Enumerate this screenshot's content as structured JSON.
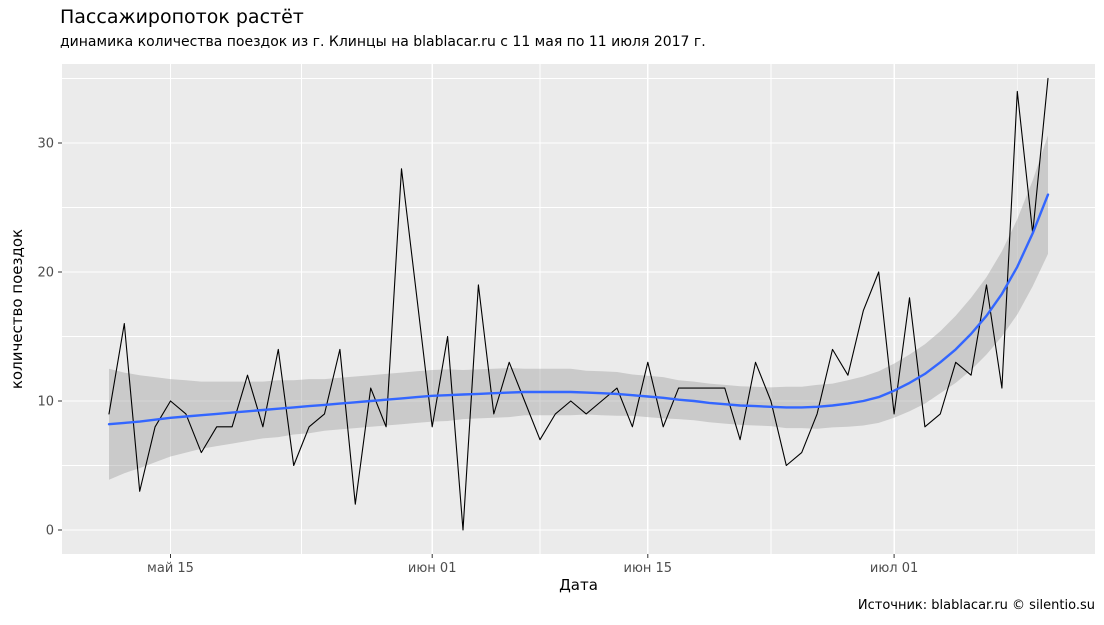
{
  "chart_data": {
    "type": "line",
    "title": "Пассажиропоток растёт",
    "subtitle": "динамика количества поездок из г. Клинцы на blablacar.ru с 11 мая по 11 июля 2017 г.",
    "caption": "Источник: blablacar.ru © silentio.su",
    "xlabel": "Дата",
    "ylabel": "количество поездок",
    "x_start_date": "2017-05-11",
    "x_end_date": "2017-07-11",
    "x_frequency": "daily",
    "x_tick_labels": [
      "май 15",
      "июн 01",
      "июн 15",
      "июл 01"
    ],
    "x_tick_day_indices": [
      4,
      21,
      35,
      51
    ],
    "x_minor_day_indices": [
      12.5,
      28,
      43,
      59
    ],
    "y_tick_labels": [
      "0",
      "10",
      "20",
      "30"
    ],
    "y_tick_values": [
      0,
      10,
      20,
      30
    ],
    "y_minor_values": [
      5,
      15,
      25,
      35
    ],
    "xlim_day_index": [
      -3.05,
      64.05
    ],
    "ylim": [
      -1.86,
      36.12
    ],
    "grid": true,
    "legend_position": "none",
    "panel_background": "#EBEBEB",
    "grid_color": "#FFFFFF",
    "tick_text_color": "#4D4D4D",
    "tick_mark_color": "#333333",
    "series": [
      {
        "name": "число поездок в день",
        "role": "data-line",
        "color": "#000000",
        "values": [
          9,
          16,
          3,
          8,
          10,
          9,
          6,
          8,
          8,
          12,
          8,
          14,
          5,
          8,
          9,
          14,
          2,
          11,
          8,
          28,
          18,
          8,
          15,
          0,
          19,
          9,
          13,
          10,
          7,
          9,
          10,
          9,
          10,
          11,
          8,
          13,
          8,
          11,
          11,
          11,
          11,
          7,
          13,
          10,
          5,
          6,
          9,
          14,
          12,
          17,
          20,
          9,
          18,
          8,
          9,
          13,
          12,
          19,
          11,
          34,
          23,
          35
        ]
      },
      {
        "name": "сглаженный тренд (loess)",
        "role": "smooth-line",
        "color": "#3366FF",
        "values": [
          8.2,
          8.3,
          8.4,
          8.55,
          8.7,
          8.8,
          8.9,
          9.0,
          9.1,
          9.2,
          9.3,
          9.4,
          9.5,
          9.6,
          9.7,
          9.8,
          9.9,
          10.0,
          10.1,
          10.2,
          10.3,
          10.4,
          10.45,
          10.5,
          10.55,
          10.6,
          10.65,
          10.7,
          10.7,
          10.7,
          10.7,
          10.65,
          10.6,
          10.55,
          10.45,
          10.35,
          10.25,
          10.1,
          10.0,
          9.85,
          9.75,
          9.65,
          9.6,
          9.55,
          9.5,
          9.5,
          9.55,
          9.65,
          9.8,
          10.0,
          10.3,
          10.8,
          11.4,
          12.1,
          13.0,
          14.0,
          15.2,
          16.6,
          18.3,
          20.4,
          23.0,
          26.0
        ]
      },
      {
        "name": "доверительная полоса (полуширина)",
        "role": "ribbon-halfwidth",
        "color": "#999999",
        "opacity": 0.4,
        "values": [
          4.3,
          3.9,
          3.6,
          3.3,
          3.0,
          2.8,
          2.6,
          2.5,
          2.4,
          2.3,
          2.2,
          2.2,
          2.1,
          2.1,
          2.0,
          2.0,
          2.0,
          2.0,
          2.0,
          2.0,
          2.0,
          2.0,
          2.0,
          1.9,
          1.9,
          1.9,
          1.9,
          1.8,
          1.8,
          1.8,
          1.8,
          1.7,
          1.7,
          1.7,
          1.6,
          1.6,
          1.6,
          1.5,
          1.5,
          1.5,
          1.5,
          1.5,
          1.5,
          1.5,
          1.6,
          1.6,
          1.7,
          1.7,
          1.8,
          1.9,
          2.0,
          2.1,
          2.2,
          2.3,
          2.4,
          2.6,
          2.8,
          3.0,
          3.3,
          3.7,
          4.1,
          4.6
        ]
      }
    ]
  }
}
